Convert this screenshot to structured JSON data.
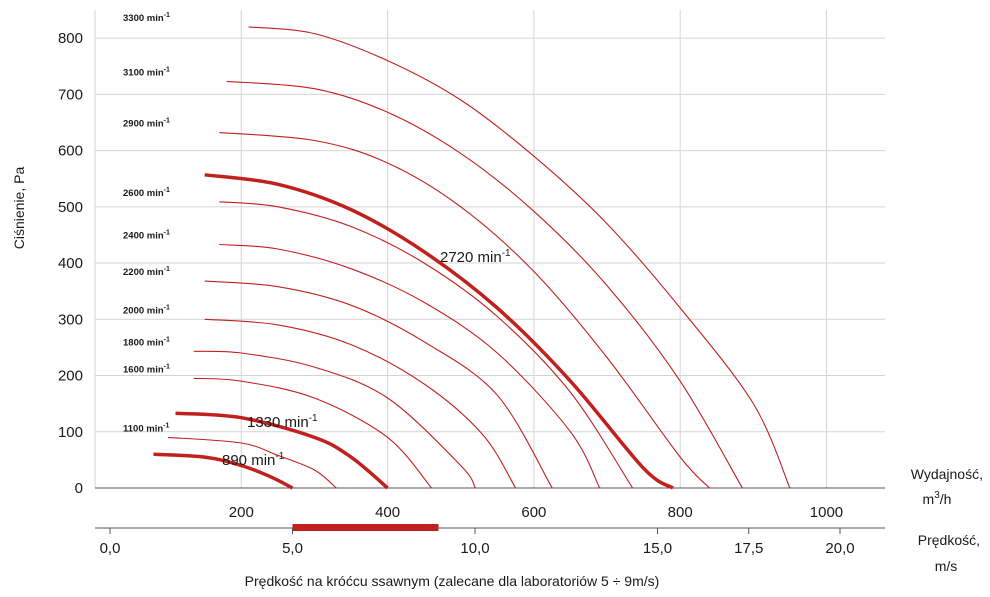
{
  "chart_data": {
    "type": "line",
    "ylabel": "Ciśnienie, Pa",
    "y_ticks": [
      "0",
      "100",
      "200",
      "300",
      "400",
      "500",
      "600",
      "700",
      "800"
    ],
    "ylim": [
      0,
      850
    ],
    "xlabel_flow": "Wydajność,",
    "xlabel_flow_unit_base": "m",
    "xlabel_flow_unit_sup": "3",
    "xlabel_flow_unit_rest": "/h",
    "x_flow_ticks": [
      "200",
      "400",
      "600",
      "800",
      "1000"
    ],
    "xlim_flow": [
      0,
      1080
    ],
    "xlabel_speed": "Prędkość,",
    "xlabel_speed_unit": "m/s",
    "x_speed_ticks": [
      "0,0",
      "5,0",
      "10,0",
      "15,0",
      "17,5",
      "20,0"
    ],
    "bottom_label": "Prędkość na króćcu ssawnym (zalecane dla laboratoriów 5 ÷ 9m/s)",
    "recommended_speed_range": [
      5,
      9
    ],
    "unit_text": "min",
    "unit_sup": "-1",
    "colors": {
      "curve": "#c0201e",
      "grid": "#d4d4d4",
      "axis": "#555555",
      "band": "#c0201e"
    },
    "series": [
      {
        "name": "3300",
        "x": [
          210,
          300,
          400,
          500,
          600,
          700,
          800,
          900,
          950
        ],
        "y": [
          820,
          808,
          760,
          690,
          590,
          470,
          320,
          150,
          0
        ],
        "highlight": false,
        "label_style": "small"
      },
      {
        "name": "3100",
        "x": [
          180,
          300,
          400,
          500,
          600,
          700,
          800,
          885
        ],
        "y": [
          723,
          710,
          668,
          595,
          492,
          360,
          190,
          0
        ],
        "highlight": false,
        "label_style": "small"
      },
      {
        "name": "2900",
        "x": [
          170,
          300,
          400,
          500,
          600,
          700,
          800,
          840
        ],
        "y": [
          632,
          618,
          578,
          500,
          385,
          232,
          55,
          0
        ],
        "highlight": false,
        "label_style": "small"
      },
      {
        "name": "2720",
        "x": [
          150,
          250,
          350,
          450,
          550,
          650,
          750,
          790
        ],
        "y": [
          557,
          540,
          495,
          420,
          320,
          190,
          35,
          0
        ],
        "highlight": true,
        "label_style": "large"
      },
      {
        "name": "2600",
        "x": [
          170,
          250,
          350,
          450,
          550,
          650,
          735
        ],
        "y": [
          509,
          500,
          465,
          400,
          305,
          170,
          0
        ],
        "highlight": false,
        "label_style": "small"
      },
      {
        "name": "2400",
        "x": [
          170,
          250,
          350,
          450,
          550,
          650,
          690
        ],
        "y": [
          433,
          425,
          390,
          330,
          240,
          100,
          0
        ],
        "highlight": false,
        "label_style": "small"
      },
      {
        "name": "2200",
        "x": [
          150,
          250,
          350,
          450,
          550,
          625
        ],
        "y": [
          368,
          358,
          325,
          260,
          165,
          0
        ],
        "highlight": false,
        "label_style": "small"
      },
      {
        "name": "2000",
        "x": [
          150,
          250,
          350,
          450,
          530,
          575
        ],
        "y": [
          300,
          290,
          255,
          185,
          95,
          0
        ],
        "highlight": false,
        "label_style": "small"
      },
      {
        "name": "1800",
        "x": [
          135,
          200,
          300,
          400,
          500,
          520
        ],
        "y": [
          243,
          240,
          215,
          160,
          40,
          0
        ],
        "highlight": false,
        "label_style": "small"
      },
      {
        "name": "1600",
        "x": [
          135,
          200,
          300,
          400,
          460
        ],
        "y": [
          195,
          190,
          160,
          90,
          0
        ],
        "highlight": false,
        "label_style": "small"
      },
      {
        "name": "1330",
        "x": [
          110,
          200,
          300,
          350,
          400
        ],
        "y": [
          133,
          125,
          90,
          55,
          0
        ],
        "highlight": true,
        "label_style": "large"
      },
      {
        "name": "1100",
        "x": [
          100,
          200,
          250,
          300,
          330
        ],
        "y": [
          90,
          80,
          58,
          32,
          0
        ],
        "highlight": false,
        "label_style": "small"
      },
      {
        "name": "890",
        "x": [
          80,
          150,
          200,
          240,
          270
        ],
        "y": [
          60,
          55,
          40,
          20,
          0
        ],
        "highlight": true,
        "label_style": "large"
      }
    ]
  }
}
